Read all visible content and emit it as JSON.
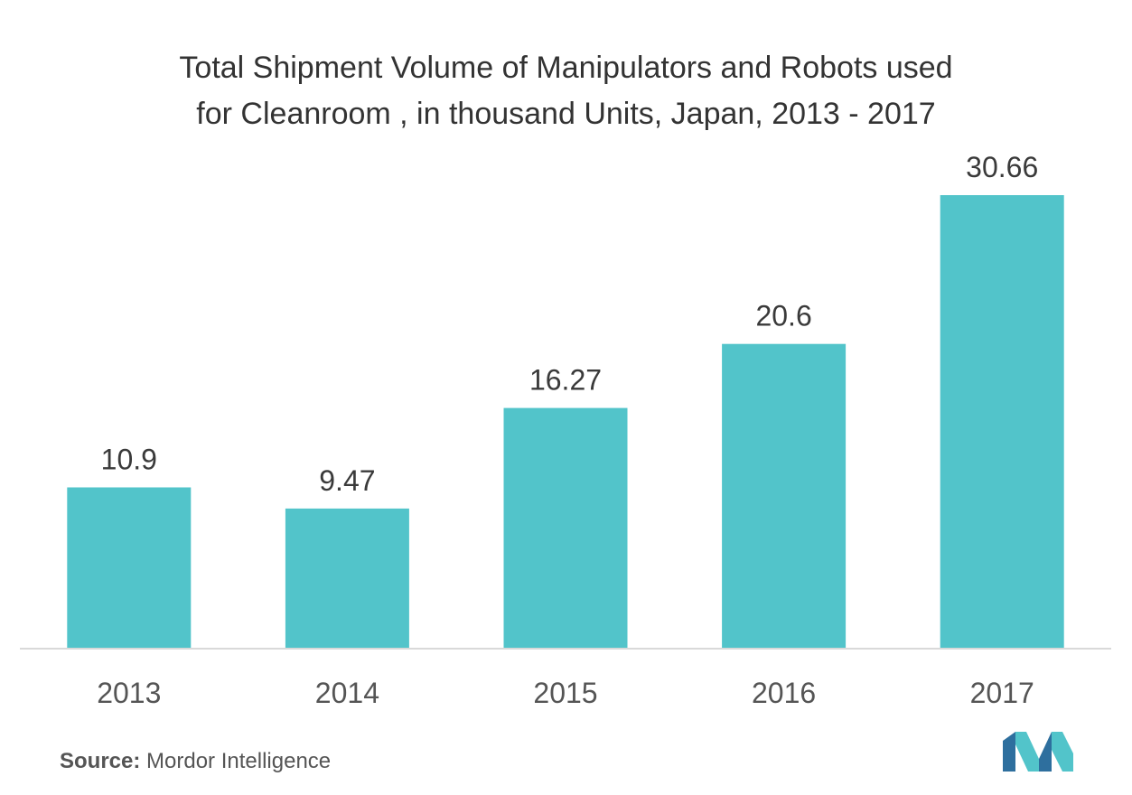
{
  "chart_data": {
    "type": "bar",
    "title_lines": [
      "Total Shipment Volume of Manipulators and Robots used",
      "for Cleanroom , in thousand Units, Japan, 2013 - 2017"
    ],
    "categories": [
      "2013",
      "2014",
      "2015",
      "2016",
      "2017"
    ],
    "values": [
      10.9,
      9.47,
      16.27,
      20.6,
      30.66
    ],
    "value_labels": [
      "10.9",
      "9.47",
      "16.27",
      "20.6",
      "30.66"
    ],
    "xlabel": "",
    "ylabel": "",
    "ylim": [
      0,
      30.66
    ],
    "grid": false,
    "legend": "none",
    "bar_color": "#52C4CA",
    "axis_color": "#d9d9d9"
  },
  "source": {
    "label": "Source:",
    "text": "Mordor Intelligence"
  },
  "logo": {
    "icon": "mordor-intelligence-logo-icon",
    "colors": [
      "#2E6F9E",
      "#52C4CA"
    ]
  }
}
